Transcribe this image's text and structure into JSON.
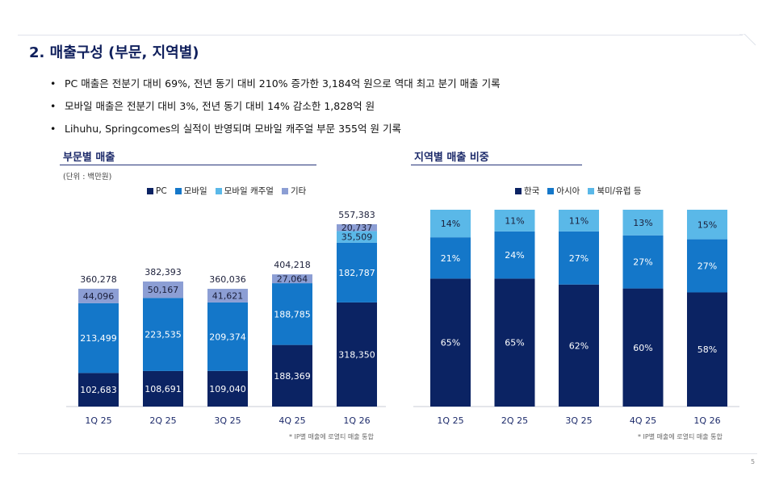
{
  "page": {
    "title": "2. 매출구성 (부문, 지역별)",
    "page_number": "5"
  },
  "bullets": [
    "PC 매출은 전분기 대비  69%, 전년 동기 대비 210% 증가한 3,184억 원으로 역대 최고 분기 매출 기록",
    "모바일 매출은 전분기 대비 3%, 전년 동기 대비 14% 감소한 1,828억 원",
    "Lihuhu, Springcomes의 실적이 반영되며 모바일 캐주얼 부문 355억 원 기록"
  ],
  "segment_section": {
    "title": "부문별 매출",
    "unit": "(단위 : 백만원)",
    "footnote": "* IP별 매출에 로열티 매출 통합"
  },
  "region_section": {
    "title": "지역별 매출 비중",
    "footnote": "* IP별 매출에 로열티 매출 통합"
  },
  "colors": {
    "dark_navy": "#0b2363",
    "mid_blue": "#1477c9",
    "light_blue": "#5ab8e8",
    "periwinkle": "#8c9ed4",
    "title": "#0f1f5c"
  },
  "chart_data": [
    {
      "type": "bar",
      "stacked": true,
      "categories": [
        "1Q 25",
        "2Q 25",
        "3Q 25",
        "4Q 25",
        "1Q 26"
      ],
      "series": [
        {
          "name": "PC",
          "values": [
            102683,
            108691,
            109040,
            188369,
            318350
          ],
          "color": "#0b2363",
          "label_color": "#ffffff"
        },
        {
          "name": "모바일",
          "values": [
            213499,
            223535,
            209374,
            188785,
            182787
          ],
          "color": "#1477c9",
          "label_color": "#ffffff"
        },
        {
          "name": "모바일 캐주얼",
          "values": [
            0,
            0,
            0,
            0,
            35509
          ],
          "color": "#5ab8e8",
          "label_color": "#1b1f3a"
        },
        {
          "name": "기타",
          "values": [
            44096,
            50167,
            41621,
            27064,
            20737
          ],
          "color": "#8c9ed4",
          "label_color": "#1b1f3a"
        }
      ],
      "totals": [
        360278,
        382393,
        360036,
        404218,
        557383
      ],
      "legend_position": "top-center",
      "grid": false
    },
    {
      "type": "bar",
      "stacked": true,
      "percent": true,
      "categories": [
        "1Q 25",
        "2Q 25",
        "3Q 25",
        "4Q 25",
        "1Q 26"
      ],
      "series": [
        {
          "name": "한국",
          "values": [
            65,
            65,
            62,
            60,
            58
          ],
          "color": "#0b2363",
          "label_color": "#ffffff"
        },
        {
          "name": "아시아",
          "values": [
            21,
            24,
            27,
            27,
            27
          ],
          "color": "#1477c9",
          "label_color": "#ffffff"
        },
        {
          "name": "북미/유럽 등",
          "values": [
            14,
            11,
            11,
            13,
            15
          ],
          "color": "#5ab8e8",
          "label_color": "#1b1f3a"
        }
      ],
      "legend_position": "top-right",
      "grid": false
    }
  ]
}
